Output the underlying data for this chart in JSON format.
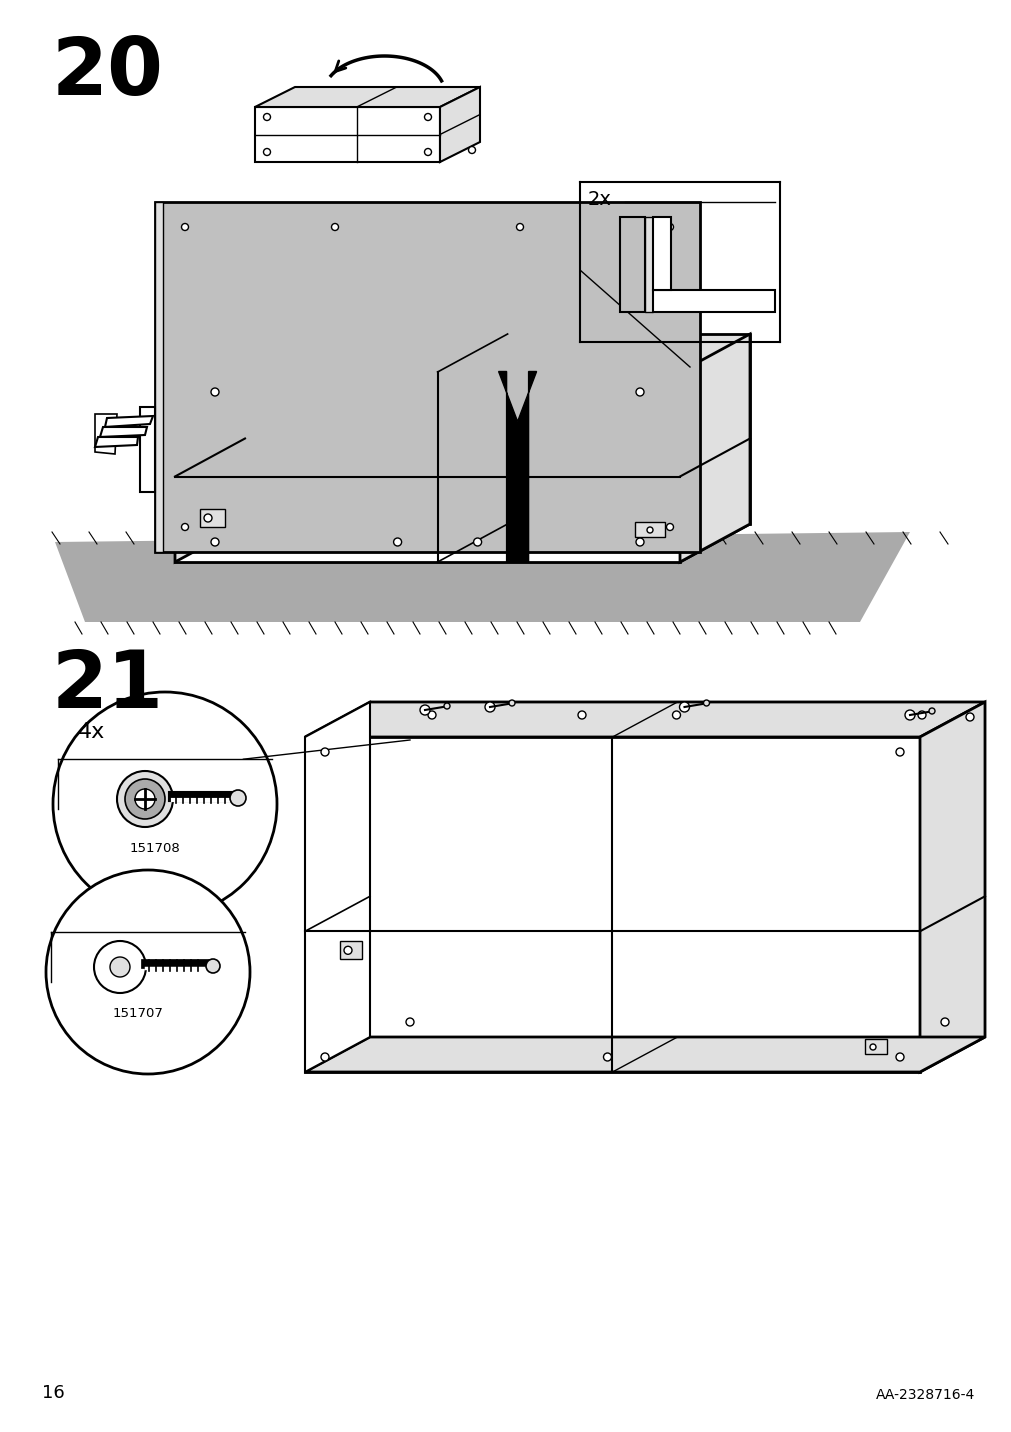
{
  "page_number": "16",
  "doc_number": "AA-2328716-4",
  "step20_label": "20",
  "step21_label": "21",
  "multiplier_2x": "2x",
  "multiplier_4x": "4x",
  "part_id_top": "151708",
  "part_id_bottom": "151707",
  "bg_color": "#ffffff",
  "line_color": "#000000",
  "gray_fill": "#c0c0c0",
  "light_gray": "#e0e0e0",
  "mid_gray": "#aaaaaa",
  "dark_gray": "#888888"
}
